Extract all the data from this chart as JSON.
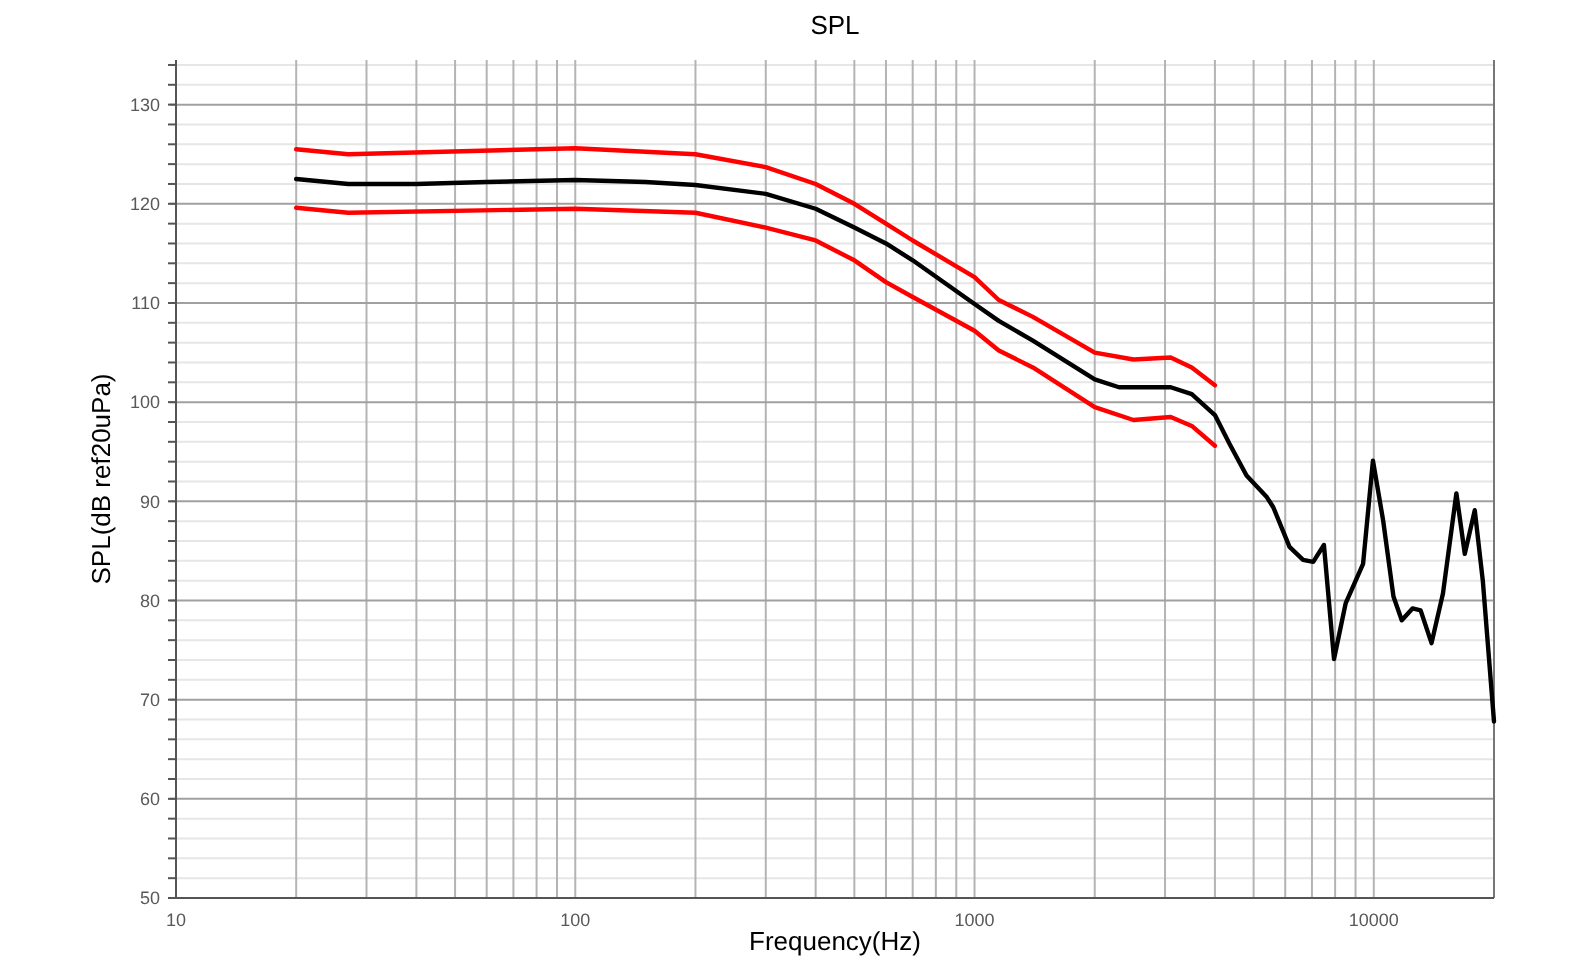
{
  "chart_data": {
    "type": "line",
    "title": "SPL",
    "xlabel": "Frequency(Hz)",
    "ylabel": "SPL(dB ref20uPa)",
    "log": "x",
    "xlim": [
      10,
      20000
    ],
    "ylim": [
      50,
      134.5
    ],
    "xticks": [
      10,
      {
        "value": 20,
        "label": null
      },
      {
        "value": 30,
        "label": null
      },
      {
        "value": 40,
        "label": null
      },
      {
        "value": 50,
        "label": null
      },
      {
        "value": 60,
        "label": null
      },
      {
        "value": 70,
        "label": null
      },
      {
        "value": 80,
        "label": null
      },
      {
        "value": 90,
        "label": null
      },
      100,
      {
        "value": 200,
        "label": null
      },
      {
        "value": 300,
        "label": null
      },
      {
        "value": 400,
        "label": null
      },
      {
        "value": 500,
        "label": null
      },
      {
        "value": 600,
        "label": null
      },
      {
        "value": 700,
        "label": null
      },
      {
        "value": 800,
        "label": null
      },
      {
        "value": 900,
        "label": null
      },
      1000,
      {
        "value": 2000,
        "label": null
      },
      {
        "value": 3000,
        "label": null
      },
      {
        "value": 4000,
        "label": null
      },
      {
        "value": 5000,
        "label": null
      },
      {
        "value": 6000,
        "label": null
      },
      {
        "value": 7000,
        "label": null
      },
      {
        "value": 8000,
        "label": null
      },
      {
        "value": 9000,
        "label": null
      },
      10000
    ],
    "yticks": [
      50,
      {
        "value": 52,
        "label": null
      },
      {
        "value": 54,
        "label": null
      },
      {
        "value": 56,
        "label": null
      },
      {
        "value": 58,
        "label": null
      },
      60,
      {
        "value": 62,
        "label": null
      },
      {
        "value": 64,
        "label": null
      },
      {
        "value": 66,
        "label": null
      },
      {
        "value": 68,
        "label": null
      },
      70,
      {
        "value": 72,
        "label": null
      },
      {
        "value": 74,
        "label": null
      },
      {
        "value": 76,
        "label": null
      },
      {
        "value": 78,
        "label": null
      },
      80,
      {
        "value": 82,
        "label": null
      },
      {
        "value": 84,
        "label": null
      },
      {
        "value": 86,
        "label": null
      },
      {
        "value": 88,
        "label": null
      },
      90,
      {
        "value": 92,
        "label": null
      },
      {
        "value": 94,
        "label": null
      },
      {
        "value": 96,
        "label": null
      },
      {
        "value": 98,
        "label": null
      },
      100,
      {
        "value": 102,
        "label": null
      },
      {
        "value": 104,
        "label": null
      },
      {
        "value": 106,
        "label": null
      },
      {
        "value": 108,
        "label": null
      },
      110,
      {
        "value": 112,
        "label": null
      },
      {
        "value": 114,
        "label": null
      },
      {
        "value": 116,
        "label": null
      },
      {
        "value": 118,
        "label": null
      },
      120,
      {
        "value": 122,
        "label": null
      },
      {
        "value": 124,
        "label": null
      },
      {
        "value": 126,
        "label": null
      },
      {
        "value": 128,
        "label": null
      },
      130,
      {
        "value": 132,
        "label": null
      },
      {
        "value": 134,
        "label": null
      }
    ],
    "grid": true,
    "series": [
      {
        "color": "#000000",
        "x": [
          20,
          27,
          40,
          60,
          100,
          150,
          200,
          300,
          400,
          500,
          600,
          700,
          1000,
          1150,
          1400,
          2000,
          2300,
          3100,
          3500,
          4000,
          4350,
          4800,
          5400,
          5600,
          6150,
          6650,
          7050,
          7500,
          7950,
          8500,
          9400,
          9950,
          10550,
          11200,
          11750,
          12500,
          13100,
          13950,
          14900,
          16100,
          16900,
          17900,
          18750,
          20000
        ],
        "values": [
          122.5,
          122.0,
          122.0,
          122.2,
          122.4,
          122.2,
          121.9,
          121.0,
          119.5,
          117.6,
          116.0,
          114.3,
          109.9,
          108.2,
          106.2,
          102.3,
          101.5,
          101.5,
          100.8,
          98.7,
          95.8,
          92.6,
          90.4,
          89.4,
          85.4,
          84.1,
          83.9,
          85.6,
          74.1,
          79.7,
          83.7,
          94.1,
          88.1,
          80.4,
          78.0,
          79.2,
          79.0,
          75.7,
          80.7,
          90.8,
          84.7,
          89.1,
          82.0,
          67.8
        ]
      },
      {
        "color": "#ff0000",
        "x": [
          20,
          27,
          100,
          200,
          300,
          400,
          500,
          600,
          700,
          1000,
          1150,
          1400,
          2000,
          2500,
          3100,
          3500,
          4000
        ],
        "values": [
          125.5,
          125.0,
          125.6,
          125.0,
          123.7,
          122.0,
          120.0,
          118.0,
          116.3,
          112.6,
          110.3,
          108.6,
          105.0,
          104.3,
          104.5,
          103.5,
          101.7
        ]
      },
      {
        "color": "#ff0000",
        "x": [
          20,
          27,
          100,
          200,
          300,
          400,
          500,
          600,
          700,
          1000,
          1150,
          1400,
          2000,
          2500,
          3100,
          3500,
          4000
        ],
        "values": [
          119.6,
          119.1,
          119.5,
          119.1,
          117.6,
          116.3,
          114.3,
          112.1,
          110.6,
          107.2,
          105.2,
          103.5,
          99.5,
          98.2,
          98.5,
          97.6,
          95.6
        ]
      }
    ]
  }
}
